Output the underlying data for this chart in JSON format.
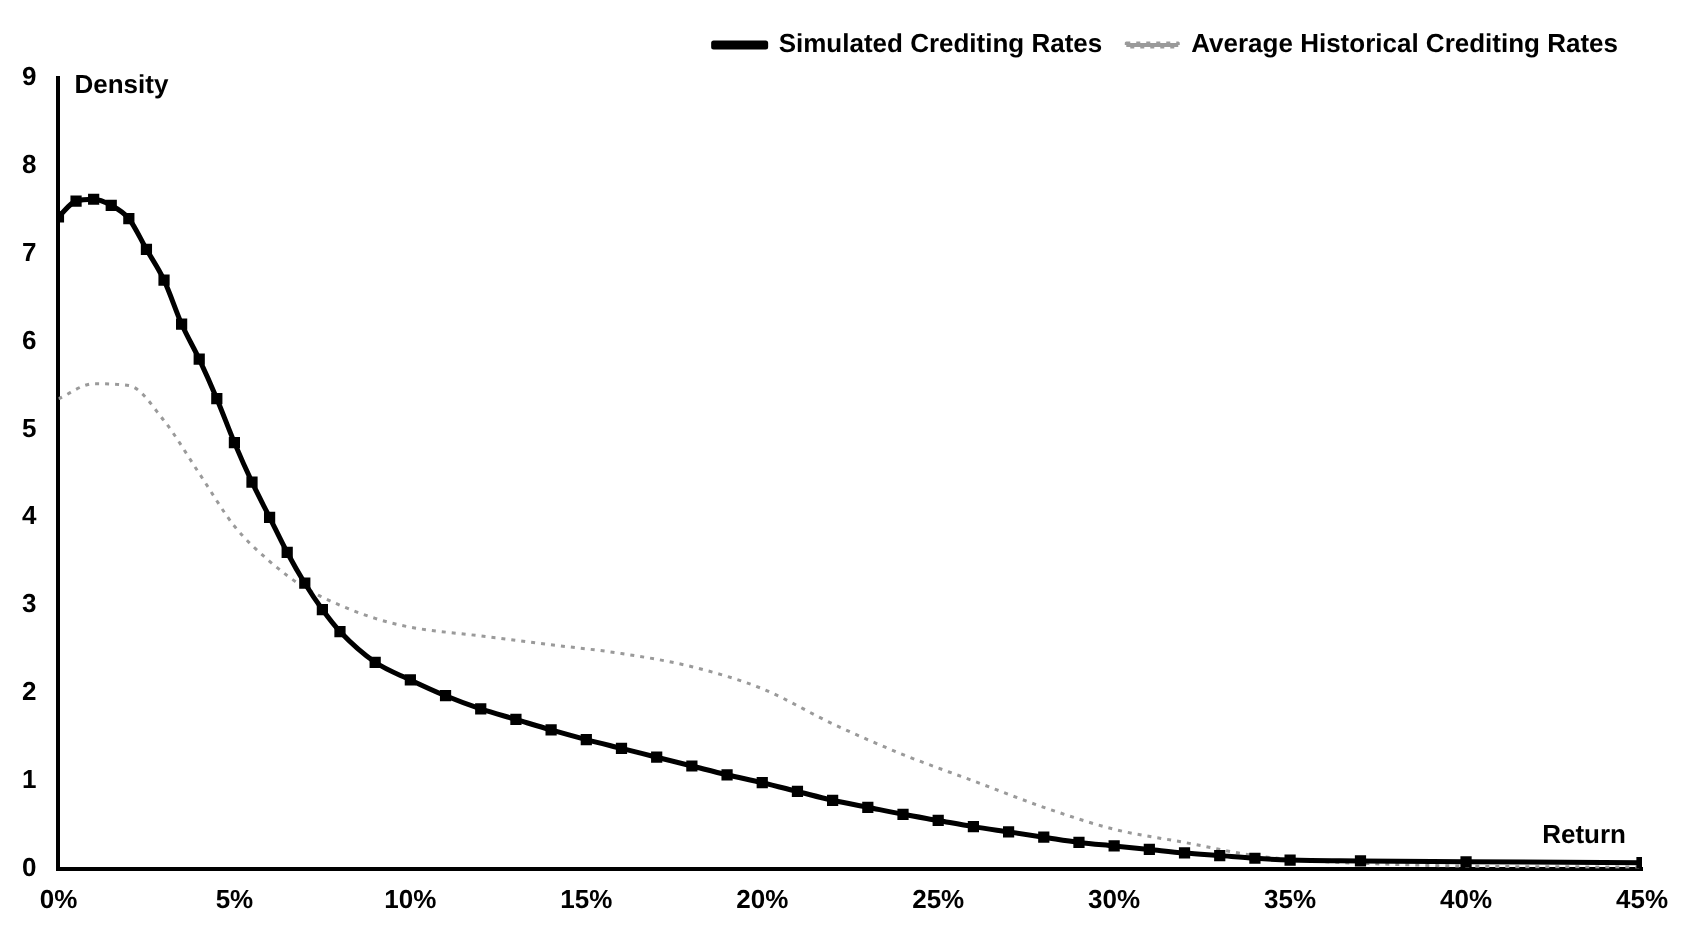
{
  "chart_data": {
    "type": "line",
    "xlabel": "Return",
    "ylabel": "Density",
    "xlim": [
      0,
      45
    ],
    "xticks": [
      {
        "value": 0,
        "label": "0%"
      },
      {
        "value": 5,
        "label": "5%"
      },
      {
        "value": 10,
        "label": "10%"
      },
      {
        "value": 15,
        "label": "15%"
      },
      {
        "value": 20,
        "label": "20%"
      },
      {
        "value": 25,
        "label": "25%"
      },
      {
        "value": 30,
        "label": "30%"
      },
      {
        "value": 35,
        "label": "35%"
      },
      {
        "value": 40,
        "label": "40%"
      },
      {
        "value": 45,
        "label": "45%"
      }
    ],
    "ylim": [
      0,
      9
    ],
    "yticks": [
      0,
      1,
      2,
      3,
      4,
      5,
      6,
      7,
      8,
      9
    ],
    "grid": false,
    "legend": "top right",
    "series": [
      {
        "name": "Simulated Crediting Rates",
        "color": "#000000",
        "marker": "square",
        "line_style": "solid",
        "x": [
          0,
          0.5,
          1,
          1.5,
          2,
          2.5,
          3,
          3.5,
          4,
          4.5,
          5,
          5.5,
          6,
          6.5,
          7,
          7.5,
          8,
          9,
          10,
          11,
          12,
          13,
          14,
          15,
          16,
          17,
          18,
          19,
          20,
          21,
          22,
          23,
          24,
          25,
          26,
          27,
          28,
          29,
          30,
          31,
          32,
          33,
          34,
          35,
          37,
          40,
          45
        ],
        "values": [
          7.42,
          7.6,
          7.62,
          7.55,
          7.4,
          7.05,
          6.7,
          6.2,
          5.8,
          5.35,
          4.85,
          4.4,
          4.0,
          3.6,
          3.25,
          2.95,
          2.7,
          2.35,
          2.15,
          1.97,
          1.82,
          1.7,
          1.58,
          1.47,
          1.37,
          1.27,
          1.17,
          1.07,
          0.98,
          0.88,
          0.78,
          0.7,
          0.62,
          0.55,
          0.48,
          0.42,
          0.36,
          0.3,
          0.26,
          0.22,
          0.18,
          0.15,
          0.12,
          0.1,
          0.09,
          0.08,
          0.07
        ]
      },
      {
        "name": "Average Historical Crediting Rates",
        "color": "#9a9a9a",
        "marker": "none",
        "line_style": "dotted",
        "x": [
          0,
          1,
          2,
          3,
          4,
          5,
          6,
          7,
          8,
          9,
          10,
          12,
          14,
          16,
          18,
          20,
          22,
          24,
          26,
          28,
          30,
          32,
          34,
          36,
          38,
          40,
          45
        ],
        "values": [
          5.35,
          5.52,
          5.5,
          5.1,
          4.5,
          3.9,
          3.5,
          3.2,
          3.0,
          2.85,
          2.75,
          2.65,
          2.55,
          2.45,
          2.3,
          2.05,
          1.65,
          1.3,
          1.0,
          0.7,
          0.45,
          0.3,
          0.15,
          0.08,
          0.05,
          0.03,
          0.02
        ]
      }
    ]
  }
}
